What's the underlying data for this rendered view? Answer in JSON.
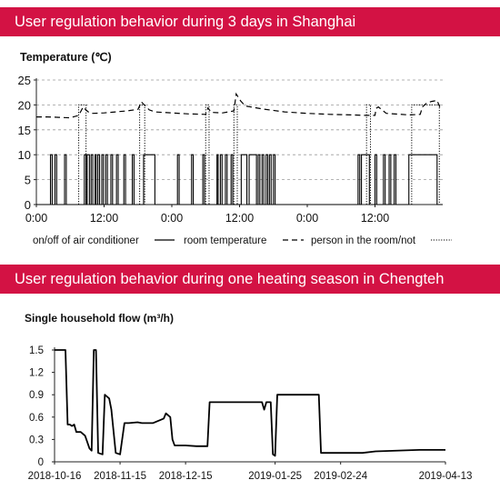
{
  "panels": {
    "top_title": "User regulation behavior during 3 days in Shanghai",
    "bottom_title": "User regulation behavior during one heating season in Chengteh"
  },
  "chart_data": [
    {
      "type": "line",
      "ylabel": "Temperature (℃)",
      "x_ticks": [
        "0:00",
        "12:00",
        "0:00",
        "12:00",
        "0:00",
        "12:00"
      ],
      "x_range_hours": [
        0,
        72
      ],
      "ylim": [
        0,
        25
      ],
      "y_ticks": [
        0,
        5,
        10,
        15,
        20,
        25
      ],
      "grid": "horizontal dashed",
      "legend_position": "bottom",
      "legend": {
        "ac": "on/off of air conditioner",
        "room": "room temperature",
        "person": "person in the room/not"
      },
      "series": [
        {
          "key": "room",
          "style": "dashed",
          "x": [
            0,
            2,
            4,
            6,
            7.5,
            8.3,
            8.6,
            9.3,
            10,
            12,
            14,
            16,
            18,
            18.6,
            19.3,
            20,
            21,
            24,
            27,
            30,
            30.4,
            31,
            33,
            35,
            35.4,
            36.2,
            37,
            40,
            44,
            48,
            52,
            56,
            58,
            60,
            60.2,
            60.6,
            62,
            66,
            68,
            68.4,
            69.2,
            70,
            71,
            71.5
          ],
          "y": [
            17.6,
            17.6,
            17.5,
            17.4,
            17.9,
            19.6,
            19.2,
            18.5,
            18.3,
            18.4,
            18.6,
            18.8,
            19.1,
            20.6,
            19.8,
            19.0,
            18.6,
            18.4,
            18.2,
            18.1,
            19.4,
            18.5,
            18.4,
            18.8,
            22.2,
            20.8,
            19.8,
            19.2,
            18.6,
            18.3,
            18.1,
            18.0,
            17.9,
            17.9,
            19.3,
            19.6,
            18.3,
            18.0,
            18.1,
            19.6,
            20.4,
            20.7,
            20.9,
            19.5
          ]
        },
        {
          "key": "ac",
          "style": "solid",
          "on_intervals": [
            [
              2.5,
              2.8
            ],
            [
              3.3,
              3.6
            ],
            [
              5.0,
              5.3
            ],
            [
              8.5,
              8.8
            ],
            [
              9.0,
              9.4
            ],
            [
              9.7,
              10.0
            ],
            [
              10.4,
              10.6
            ],
            [
              10.9,
              11.2
            ],
            [
              11.6,
              11.9
            ],
            [
              12.3,
              12.6
            ],
            [
              13.2,
              13.5
            ],
            [
              14.2,
              14.5
            ],
            [
              15.5,
              15.8
            ],
            [
              17.0,
              17.3
            ],
            [
              19.0,
              21.0
            ],
            [
              25.0,
              25.3
            ],
            [
              27.5,
              27.8
            ],
            [
              29.5,
              29.8
            ],
            [
              32.0,
              32.2
            ],
            [
              32.6,
              32.9
            ],
            [
              33.5,
              33.8
            ],
            [
              34.5,
              34.8
            ],
            [
              36.3,
              37.3
            ],
            [
              37.7,
              39.0
            ],
            [
              39.3,
              39.6
            ],
            [
              40.0,
              40.3
            ],
            [
              40.7,
              41.0
            ],
            [
              41.3,
              41.6
            ],
            [
              42.0,
              42.3
            ],
            [
              57.0,
              57.3
            ],
            [
              57.6,
              59.0
            ],
            [
              60.0,
              60.3
            ],
            [
              61.5,
              61.8
            ],
            [
              62.5,
              62.8
            ],
            [
              63.4,
              63.7
            ],
            [
              66.0,
              71.0
            ]
          ],
          "on_value": 10,
          "off_value": 0
        },
        {
          "key": "person",
          "style": "dotted",
          "present_intervals": [
            [
              7.5,
              8.8
            ],
            [
              18.3,
              19.2
            ],
            [
              30.0,
              30.6
            ],
            [
              35.0,
              35.6
            ],
            [
              58.5,
              59.2
            ],
            [
              66.5,
              71.4
            ]
          ],
          "present_value": 20,
          "absent_value": 0
        }
      ]
    },
    {
      "type": "line",
      "ylabel": "Single household flow (m³/h)",
      "x_ticks": [
        "2018-10-16",
        "2018-11-15",
        "2018-12-15",
        "2019-01-25",
        "2019-02-24",
        "2019-04-13"
      ],
      "ylim": [
        0,
        1.5
      ],
      "y_ticks": [
        "0",
        "0.3",
        "0.6",
        "0.9",
        "1.2",
        "1.5"
      ],
      "grid": "none",
      "series": [
        {
          "x": [
            "2018-10-16",
            "2018-10-21",
            "2018-10-22",
            "2018-10-23",
            "2018-10-24",
            "2018-10-25",
            "2018-10-26",
            "2018-10-28",
            "2018-10-30",
            "2018-11-01",
            "2018-11-02",
            "2018-11-03",
            "2018-11-04",
            "2018-11-05",
            "2018-11-07",
            "2018-11-08",
            "2018-11-10",
            "2018-11-11",
            "2018-11-13",
            "2018-11-15",
            "2018-11-17",
            "2018-11-19",
            "2018-11-23",
            "2018-11-25",
            "2018-11-30",
            "2018-12-05",
            "2018-12-06",
            "2018-12-08",
            "2018-12-09",
            "2018-12-10",
            "2018-12-15",
            "2018-12-20",
            "2018-12-25",
            "2018-12-26",
            "2019-01-01",
            "2019-01-10",
            "2019-01-19",
            "2019-01-20",
            "2019-01-21",
            "2019-01-23",
            "2019-01-24",
            "2019-01-25",
            "2019-01-26",
            "2019-01-28",
            "2019-02-14",
            "2019-02-15",
            "2019-02-22",
            "2019-03-06",
            "2019-03-12",
            "2019-04-01",
            "2019-04-13"
          ],
          "y": [
            1.5,
            1.5,
            0.5,
            0.5,
            0.48,
            0.5,
            0.4,
            0.4,
            0.35,
            0.18,
            0.15,
            1.5,
            1.5,
            0.12,
            0.1,
            0.9,
            0.85,
            0.7,
            0.12,
            0.1,
            0.52,
            0.52,
            0.53,
            0.52,
            0.52,
            0.58,
            0.65,
            0.6,
            0.3,
            0.22,
            0.22,
            0.21,
            0.21,
            0.8,
            0.8,
            0.8,
            0.8,
            0.7,
            0.8,
            0.8,
            0.1,
            0.08,
            0.9,
            0.9,
            0.9,
            0.12,
            0.12,
            0.12,
            0.14,
            0.16,
            0.16
          ]
        }
      ]
    }
  ]
}
